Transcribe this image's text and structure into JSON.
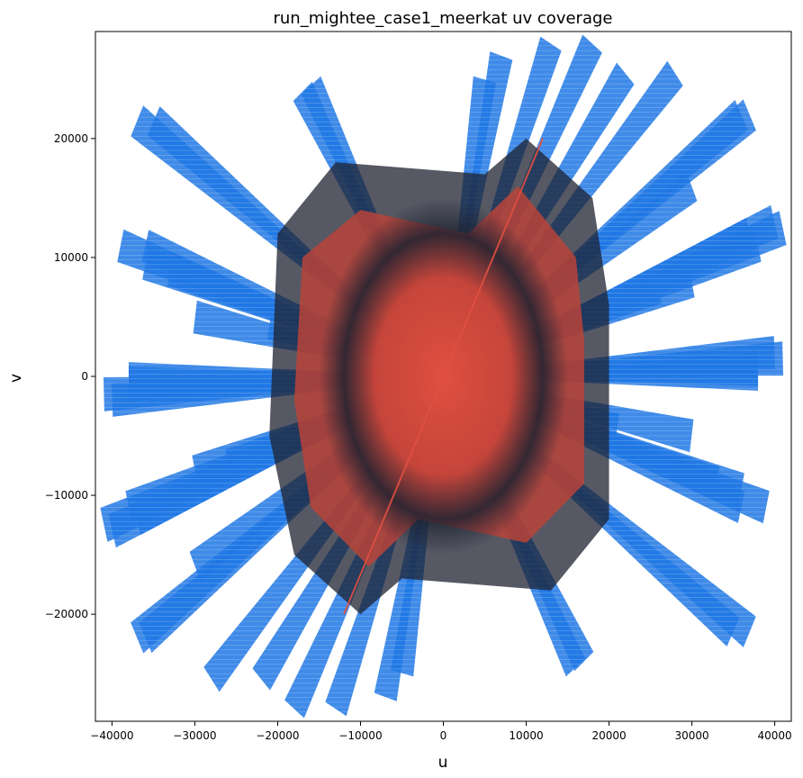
{
  "chart_data": {
    "type": "scatter",
    "title": "run_mightee_case1_meerkat uv coverage",
    "xlabel": "u",
    "ylabel": "v",
    "xlim": [
      -42000,
      42000
    ],
    "ylim": [
      -29000,
      29000
    ],
    "xticks": [
      -40000,
      -30000,
      -20000,
      -10000,
      0,
      10000,
      20000,
      30000,
      40000
    ],
    "xtick_labels": [
      "−40000",
      "−30000",
      "−20000",
      "−10000",
      "0",
      "10000",
      "20000",
      "30000",
      "40000"
    ],
    "yticks": [
      -20000,
      -10000,
      0,
      10000,
      20000
    ],
    "ytick_labels": [
      "−20000",
      "−10000",
      "0",
      "10000",
      "20000"
    ],
    "grid": false,
    "colors": {
      "sparse": "#1f77e4",
      "mid": "#1e2230",
      "dense": "#e05040"
    },
    "series": [
      {
        "values": [
          {
            "u": 13000,
            "v": 28000
          },
          {
            "u": 5000,
            "v": 25000
          },
          {
            "u": 22000,
            "v": 25500
          },
          {
            "u": -17000,
            "v": 24000
          },
          {
            "u": 36000,
            "v": 22000
          },
          {
            "u": -37000,
            "v": 21500
          },
          {
            "u": 40000,
            "v": 13000
          },
          {
            "u": 37000,
            "v": 12000
          },
          {
            "u": -39000,
            "v": 11000
          },
          {
            "u": -36000,
            "v": 9500
          },
          {
            "u": 30000,
            "v": 8000
          },
          {
            "u": -30000,
            "v": 5000
          },
          {
            "u": 40000,
            "v": 2000
          },
          {
            "u": 38000,
            "v": 600
          },
          {
            "u": -38000,
            "v": -200
          },
          {
            "u": -41000,
            "v": -1500
          },
          {
            "u": 21000,
            "v": -4500
          },
          {
            "u": -26000,
            "v": -7500
          },
          {
            "u": 36000,
            "v": -11000
          },
          {
            "u": 33000,
            "v": -9000
          },
          {
            "u": -41000,
            "v": -12500
          },
          {
            "u": -38000,
            "v": -11000
          },
          {
            "u": -30000,
            "v": -16000
          },
          {
            "u": 35000,
            "v": -21500
          },
          {
            "u": -37000,
            "v": -22000
          },
          {
            "u": -28000,
            "v": -25500
          },
          {
            "u": 16000,
            "v": -24500
          },
          {
            "u": -18000,
            "v": -28000
          },
          {
            "u": -7000,
            "v": -27000
          }
        ]
      }
    ]
  }
}
